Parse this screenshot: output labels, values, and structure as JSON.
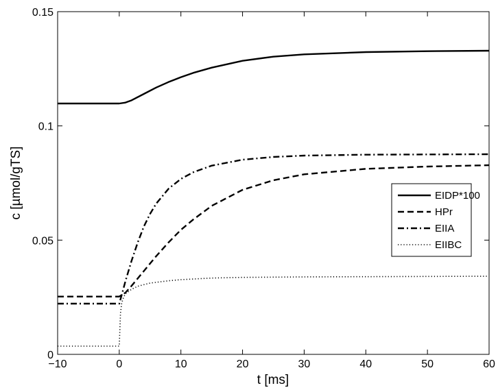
{
  "chart_data": {
    "type": "line",
    "title": "",
    "xlabel": "t [ms]",
    "ylabel": "c  [µmol/gTS]",
    "xlim": [
      -10,
      60
    ],
    "ylim": [
      0,
      0.15
    ],
    "xticks": [
      -10,
      0,
      10,
      20,
      30,
      40,
      50,
      60
    ],
    "xtick_labels": [
      "−10",
      "0",
      "10",
      "20",
      "30",
      "40",
      "50",
      "60"
    ],
    "yticks": [
      0,
      0.05,
      0.1,
      0.15
    ],
    "ytick_labels": [
      "0",
      "0.05",
      "0.1",
      "0.15"
    ],
    "grid": false,
    "legend_position": "right",
    "series": [
      {
        "name": "EIDP*100",
        "line_style": "solid",
        "x": [
          -10,
          0,
          1,
          2,
          4,
          6,
          8,
          10,
          12,
          15,
          20,
          25,
          30,
          40,
          50,
          60
        ],
        "y": [
          0.1098,
          0.1098,
          0.1102,
          0.1112,
          0.114,
          0.1168,
          0.1192,
          0.1213,
          0.1232,
          0.1255,
          0.1285,
          0.1303,
          0.1313,
          0.1323,
          0.1327,
          0.1329
        ]
      },
      {
        "name": "HPr",
        "line_style": "dashed",
        "x": [
          -10,
          0,
          1,
          2,
          4,
          6,
          8,
          10,
          12,
          15,
          20,
          25,
          30,
          40,
          50,
          60
        ],
        "y": [
          0.0253,
          0.0253,
          0.027,
          0.03,
          0.0365,
          0.043,
          0.049,
          0.0545,
          0.059,
          0.065,
          0.072,
          0.0762,
          0.0788,
          0.0812,
          0.0822,
          0.0828
        ]
      },
      {
        "name": "EIIA",
        "line_style": "dashdot",
        "x": [
          -10,
          0,
          0.5,
          1,
          2,
          3,
          4,
          5,
          6,
          8,
          10,
          12,
          15,
          20,
          25,
          30,
          40,
          50,
          60
        ],
        "y": [
          0.0222,
          0.0222,
          0.027,
          0.032,
          0.041,
          0.049,
          0.056,
          0.0615,
          0.066,
          0.0725,
          0.0768,
          0.0797,
          0.0826,
          0.0852,
          0.0864,
          0.087,
          0.0874,
          0.0875,
          0.0876
        ]
      },
      {
        "name": "EIIBC",
        "line_style": "dotted",
        "x": [
          -10,
          0,
          0.2,
          0.4,
          0.7,
          1,
          2,
          3,
          5,
          8,
          10,
          15,
          20,
          30,
          40,
          50,
          60
        ],
        "y": [
          0.0036,
          0.0036,
          0.018,
          0.0225,
          0.025,
          0.0265,
          0.0285,
          0.0298,
          0.0312,
          0.0322,
          0.0327,
          0.0334,
          0.0337,
          0.0339,
          0.034,
          0.0341,
          0.0342
        ]
      }
    ]
  }
}
